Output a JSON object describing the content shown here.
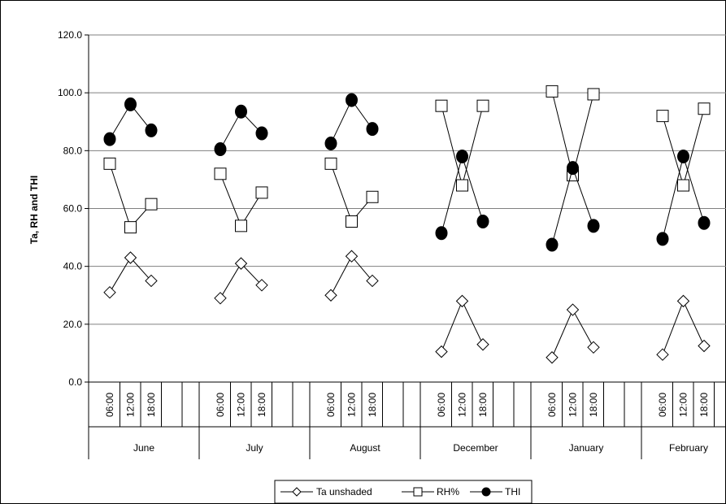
{
  "chart_data": {
    "type": "line",
    "title": "",
    "ylabel": "Ta, RH and THI",
    "xlabel": "",
    "ylim": [
      0,
      120
    ],
    "yticks": [
      "0.0",
      "20.0",
      "40.0",
      "60.0",
      "80.0",
      "100.0",
      "120.0"
    ],
    "grid": true,
    "legend_position": "bottom",
    "groups": [
      {
        "label": "June",
        "times": [
          "06:00",
          "12:00",
          "18:00"
        ]
      },
      {
        "label": "July",
        "times": [
          "06:00",
          "12:00",
          "18:00"
        ]
      },
      {
        "label": "August",
        "times": [
          "06:00",
          "12:00",
          "18:00"
        ]
      },
      {
        "label": "December",
        "times": [
          "06:00",
          "12:00",
          "18:00"
        ]
      },
      {
        "label": "January",
        "times": [
          "06:00",
          "12:00",
          "18:00"
        ]
      },
      {
        "label": "February",
        "times": [
          "06:00",
          "12:00",
          "18:00"
        ]
      }
    ],
    "series": [
      {
        "name": "Ta unshaded",
        "marker": "diamond",
        "color": "#000000",
        "values": [
          [
            31,
            43,
            35
          ],
          [
            29,
            41,
            33.5
          ],
          [
            30,
            43.5,
            35
          ],
          [
            10.5,
            28,
            13
          ],
          [
            8.5,
            25,
            12
          ],
          [
            9.5,
            28,
            12.5
          ]
        ]
      },
      {
        "name": "RH%",
        "marker": "square",
        "color": "#000000",
        "values": [
          [
            75.5,
            53.5,
            61.5
          ],
          [
            72,
            54,
            65.5
          ],
          [
            75.5,
            55.5,
            64
          ],
          [
            95.5,
            68,
            95.5
          ],
          [
            100.5,
            71.5,
            99.5
          ],
          [
            92,
            68,
            94.5
          ]
        ]
      },
      {
        "name": "THI",
        "marker": "circle",
        "color": "#000000",
        "values": [
          [
            84,
            96,
            87
          ],
          [
            80.5,
            93.5,
            86
          ],
          [
            82.5,
            97.5,
            87.5
          ],
          [
            51.5,
            78,
            55.5
          ],
          [
            47.5,
            74,
            54
          ],
          [
            49.5,
            78,
            55
          ]
        ]
      }
    ]
  }
}
